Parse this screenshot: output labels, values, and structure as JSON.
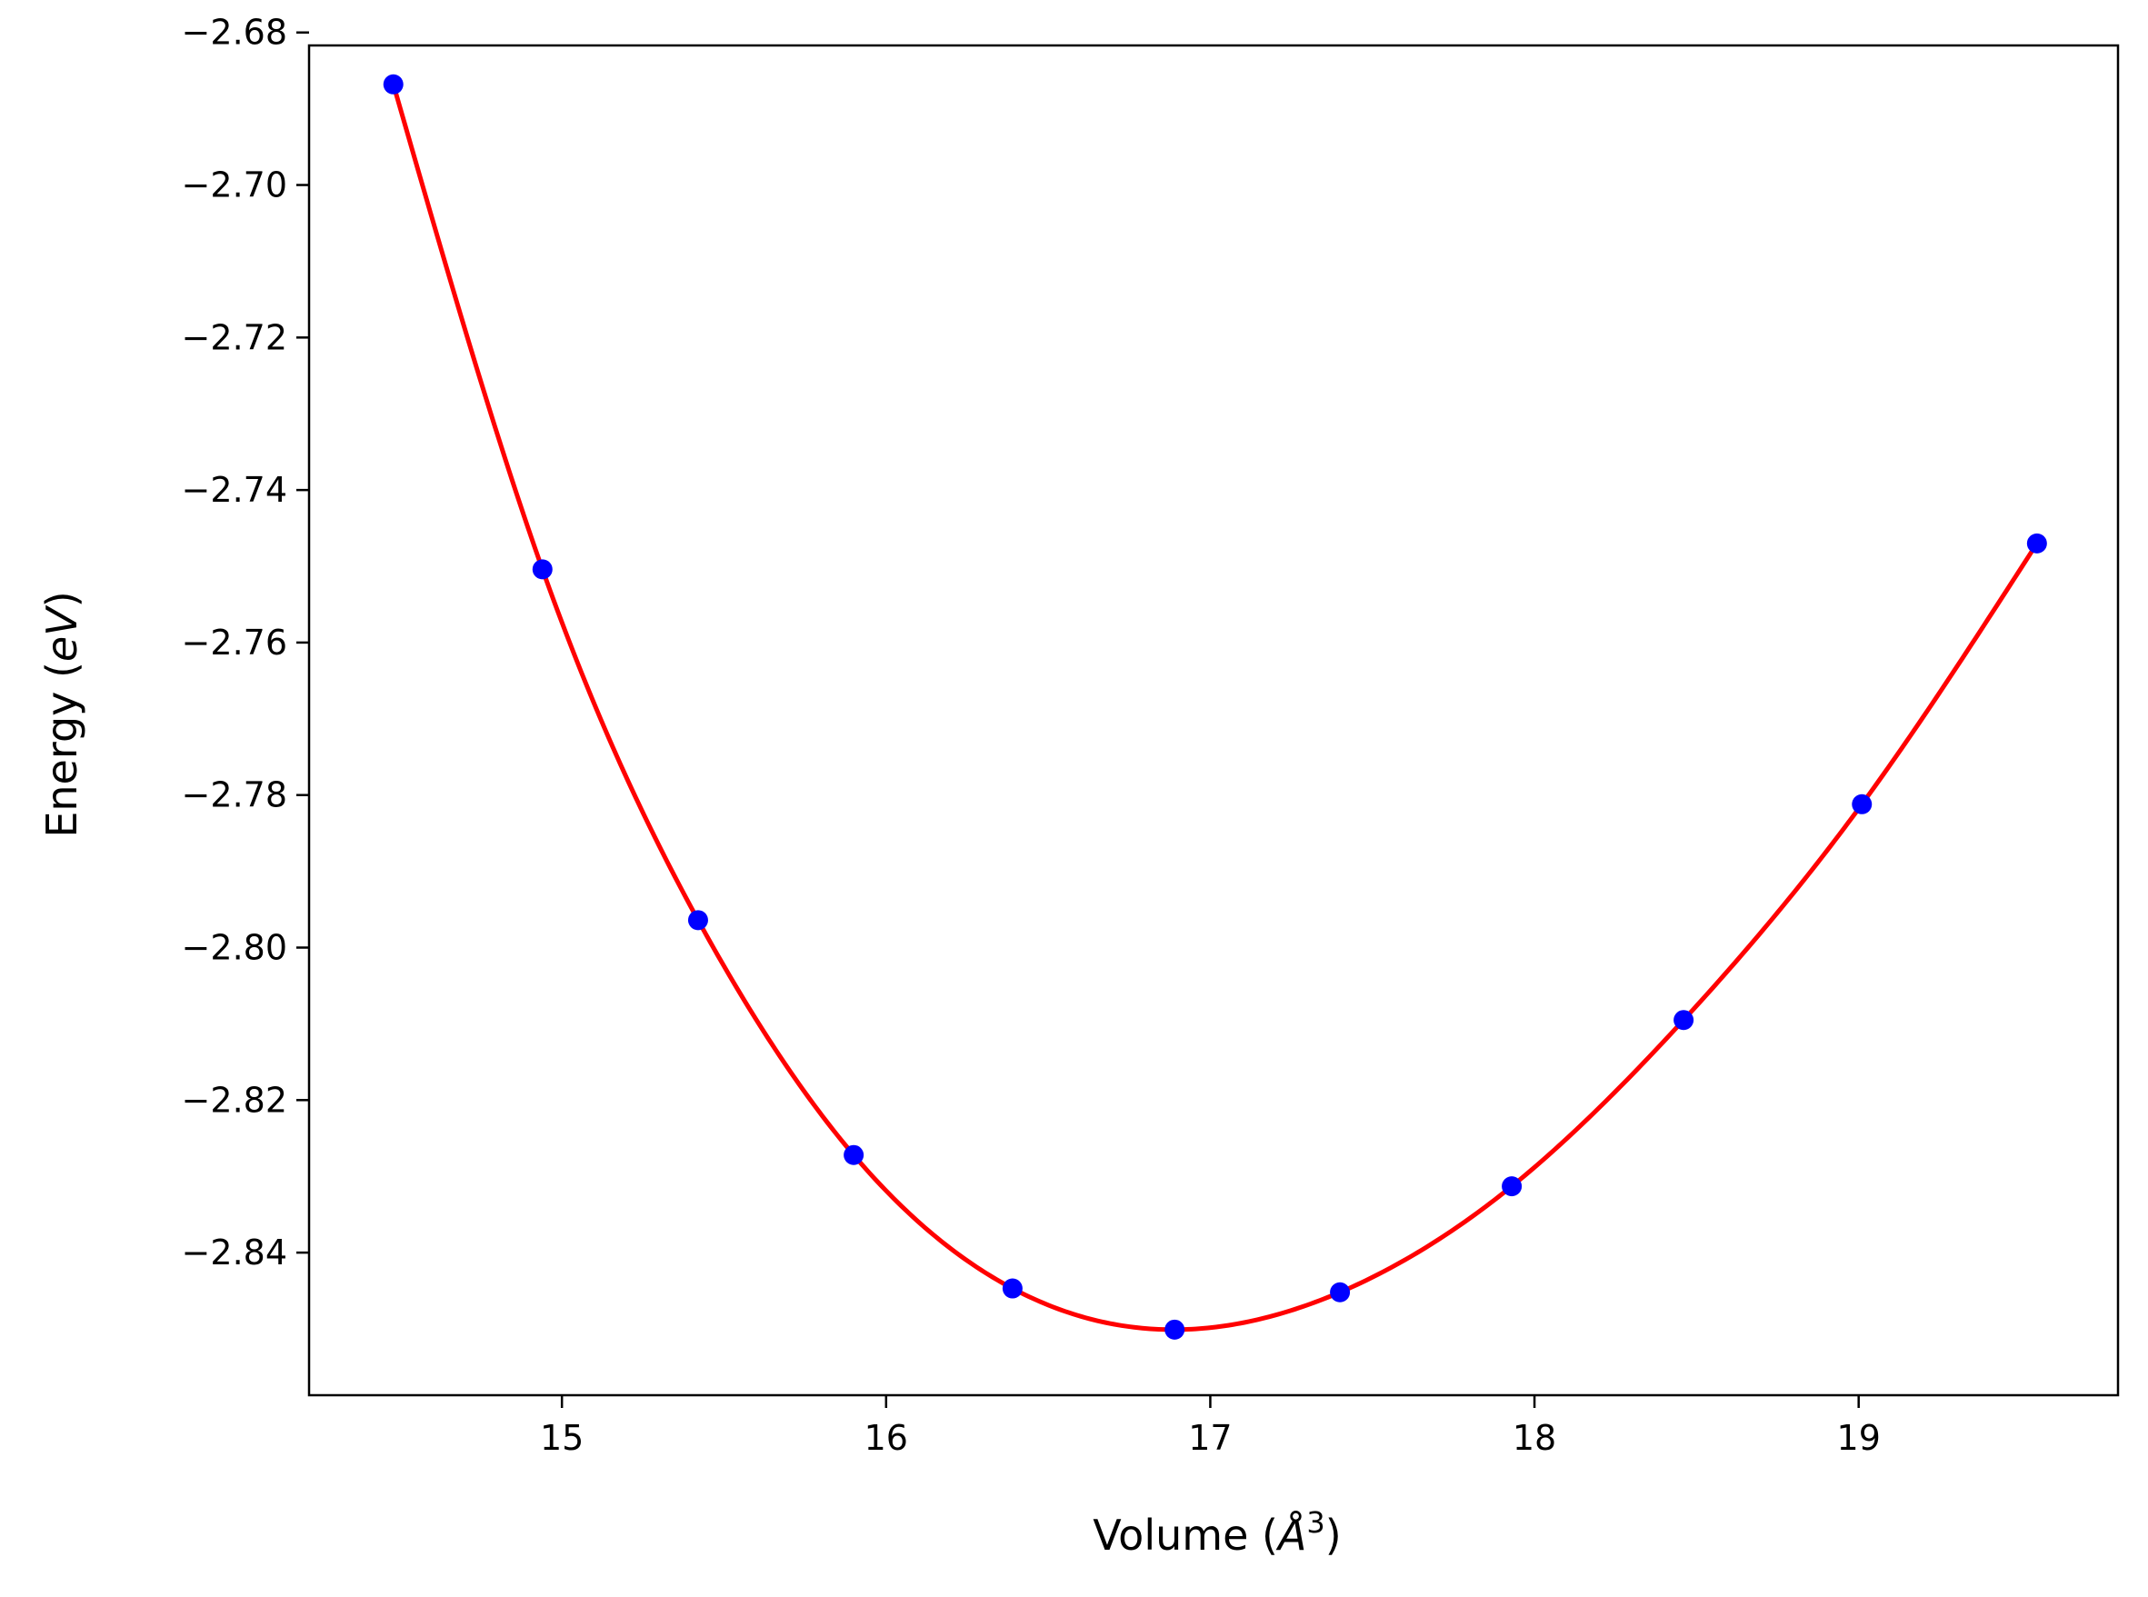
{
  "chart_data": {
    "type": "line",
    "title": "",
    "xlabel": {
      "prefix": "Volume (",
      "symbol": "Å",
      "exponent": "3",
      "suffix": ")"
    },
    "ylabel": {
      "prefix": "Energy (",
      "unit": "eV",
      "suffix": ")"
    },
    "xlim": [
      14.22,
      19.8
    ],
    "ylim": [
      -2.8587,
      -2.6817
    ],
    "xticks": [
      15,
      16,
      17,
      18,
      19
    ],
    "xtick_labels": [
      "15",
      "16",
      "17",
      "18",
      "19"
    ],
    "yticks": [
      -2.68,
      -2.7,
      -2.72,
      -2.74,
      -2.76,
      -2.78,
      -2.8,
      -2.82,
      -2.84
    ],
    "ytick_labels": [
      "−2.68",
      "−2.70",
      "−2.72",
      "−2.74",
      "−2.76",
      "−2.78",
      "−2.80",
      "−2.82",
      "−2.84"
    ],
    "grid": false,
    "legend": "none",
    "series": [
      {
        "kind": "scatter",
        "color": "#0000ff",
        "x": [
          14.48,
          14.94,
          15.42,
          15.9,
          16.39,
          16.89,
          17.4,
          17.93,
          18.46,
          19.01,
          19.55
        ],
        "y": [
          -2.6868,
          -2.7504,
          -2.7964,
          -2.8272,
          -2.8447,
          -2.8501,
          -2.8452,
          -2.8313,
          -2.8095,
          -2.7812,
          -2.747
        ]
      },
      {
        "kind": "line",
        "color": "#ff0000",
        "x": [
          14.48,
          14.94,
          15.42,
          15.9,
          16.39,
          16.89,
          17.4,
          17.93,
          18.46,
          19.01,
          19.55
        ],
        "y": [
          -2.6868,
          -2.7504,
          -2.7964,
          -2.8272,
          -2.8447,
          -2.8501,
          -2.8452,
          -2.8313,
          -2.8095,
          -2.7812,
          -2.747
        ]
      }
    ],
    "colors": {
      "axes": "#000000",
      "background": "#ffffff"
    }
  }
}
